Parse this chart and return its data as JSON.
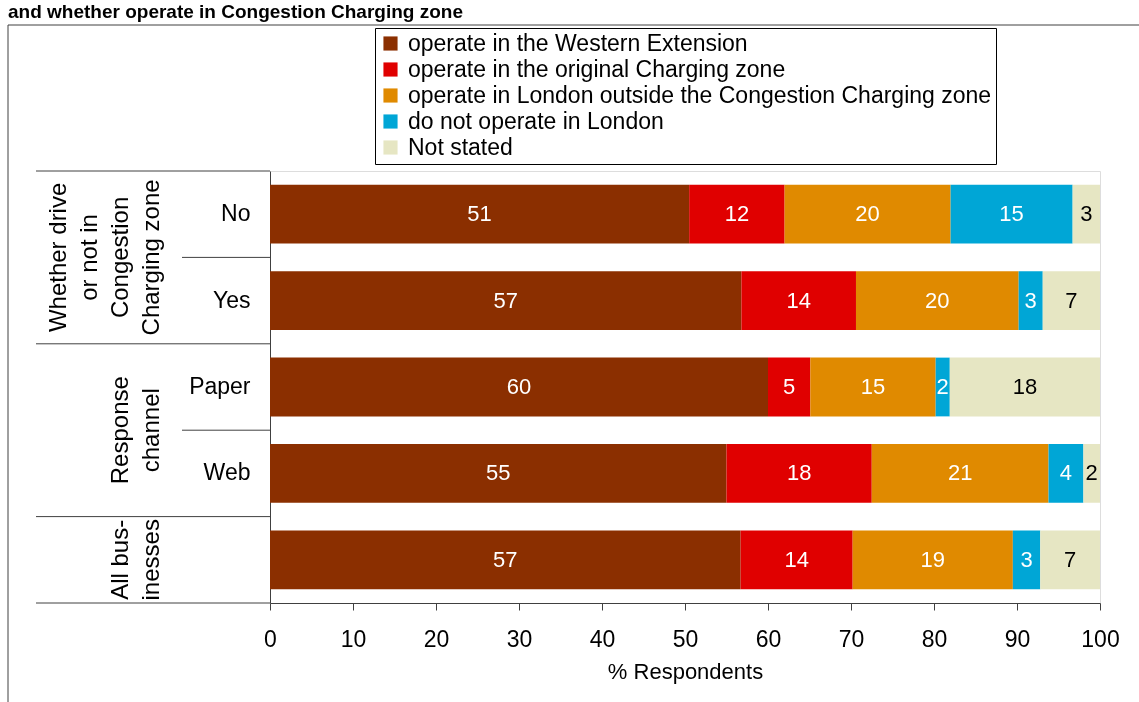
{
  "chart_data": {
    "type": "bar",
    "orientation": "horizontal",
    "stacked": true,
    "title": "and whether operate in Congestion Charging zone",
    "categories": [
      "No",
      "Yes",
      "Paper",
      "Web",
      null
    ],
    "series": [
      {
        "name": "operate in the Western Extension",
        "color": "#8b2f00",
        "values": [
          50.5,
          56.8,
          60.0,
          55.0,
          56.7
        ],
        "value_labels": [
          "51",
          "57",
          "60",
          "55",
          "57"
        ]
      },
      {
        "name": "operate in the original Charging zone",
        "color": "#e00000",
        "values": [
          11.5,
          13.8,
          5.1,
          17.5,
          13.5
        ],
        "value_labels": [
          "12",
          "14",
          "5",
          "18",
          "14"
        ]
      },
      {
        "name": "operate in London outside the Congestion Charging zone",
        "color": "#e08a00",
        "values": [
          20.0,
          19.6,
          15.1,
          21.3,
          19.3
        ],
        "value_labels": [
          "20",
          "20",
          "15",
          "21",
          "19"
        ]
      },
      {
        "name": "do not operate in London",
        "color": "#00a6d6",
        "values": [
          14.7,
          2.9,
          1.7,
          4.2,
          3.3
        ],
        "value_labels": [
          "15",
          "3",
          "2",
          "4",
          "3"
        ]
      },
      {
        "name": "Not stated",
        "color": "#e6e6c3",
        "values": [
          3.3,
          6.9,
          18.1,
          2.0,
          7.2
        ],
        "value_labels": [
          "3",
          "7",
          "18",
          "2",
          "7"
        ]
      }
    ],
    "xlabel": "% Respondents",
    "xlim": [
      0,
      100
    ],
    "xticks": [
      0,
      10,
      20,
      30,
      40,
      50,
      60,
      70,
      80,
      90,
      100
    ],
    "grid": false,
    "legend": "top",
    "annotations": [
      "Whether drive\nor not in\nCongestion\nCharging zone",
      "Response\nchannel",
      "All bus-\ninesses"
    ]
  }
}
